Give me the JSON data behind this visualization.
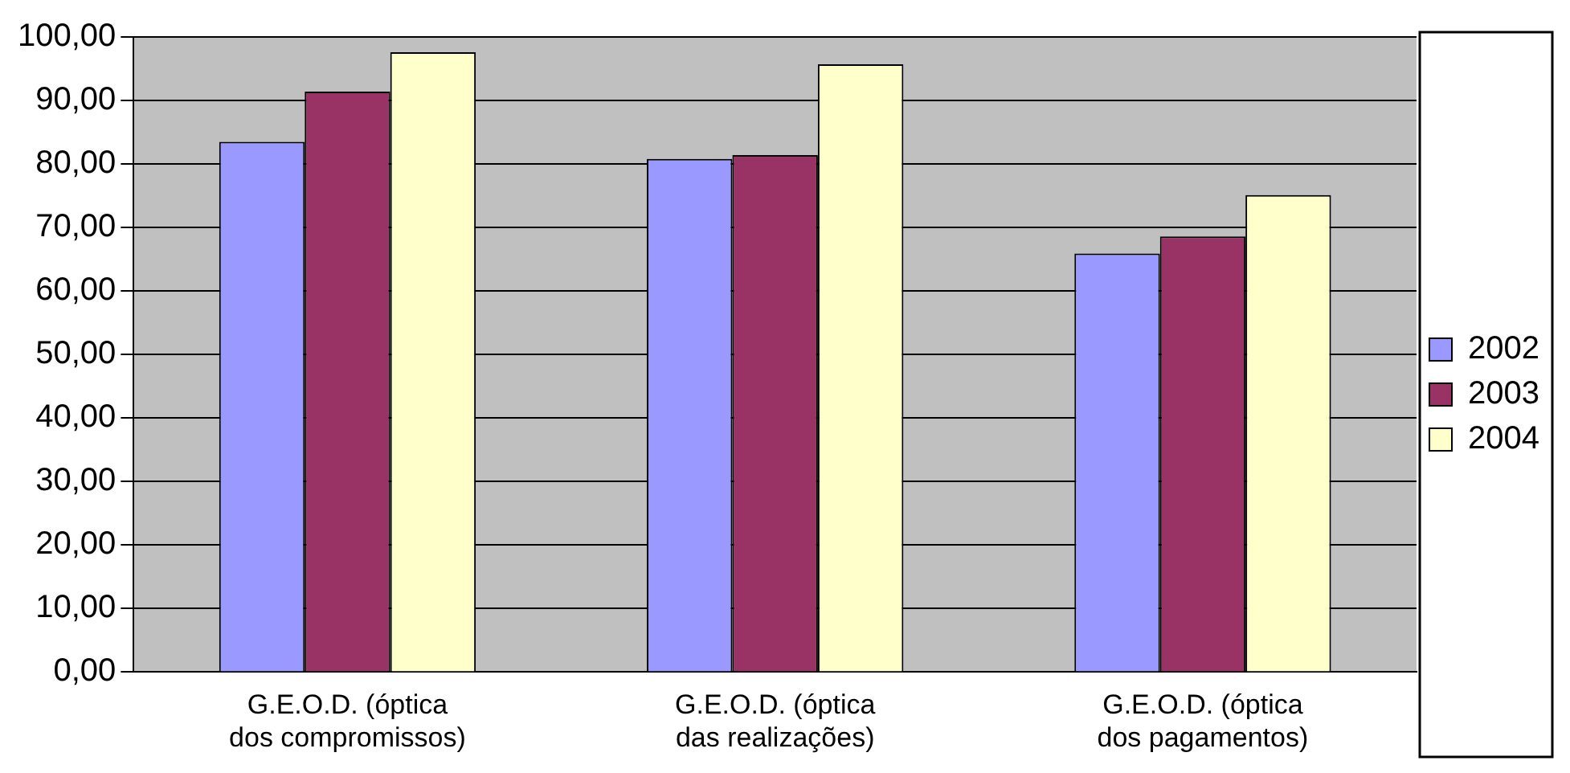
{
  "chart_data": {
    "type": "bar",
    "categories": [
      "G.E.O.D. (óptica dos compromissos)",
      "G.E.O.D. (óptica das realizações)",
      "G.E.O.D. (óptica dos pagamentos)"
    ],
    "series": [
      {
        "name": "2002",
        "color": "#9999ff",
        "values": [
          83.5,
          80.8,
          65.9
        ]
      },
      {
        "name": "2003",
        "color": "#993366",
        "values": [
          91.4,
          81.4,
          68.6
        ]
      },
      {
        "name": "2004",
        "color": "#ffffcc",
        "values": [
          97.6,
          95.7,
          75.1
        ]
      }
    ],
    "ylim": [
      0,
      100
    ],
    "yticks": [
      {
        "value": 0,
        "label": "0,00"
      },
      {
        "value": 10,
        "label": "10,00"
      },
      {
        "value": 20,
        "label": "20,00"
      },
      {
        "value": 30,
        "label": "30,00"
      },
      {
        "value": 40,
        "label": "40,00"
      },
      {
        "value": 50,
        "label": "50,00"
      },
      {
        "value": 60,
        "label": "60,00"
      },
      {
        "value": 70,
        "label": "70,00"
      },
      {
        "value": 80,
        "label": "80,00"
      },
      {
        "value": 90,
        "label": "90,00"
      },
      {
        "value": 100,
        "label": "100,00"
      }
    ],
    "grid": "y",
    "legend": "right"
  }
}
